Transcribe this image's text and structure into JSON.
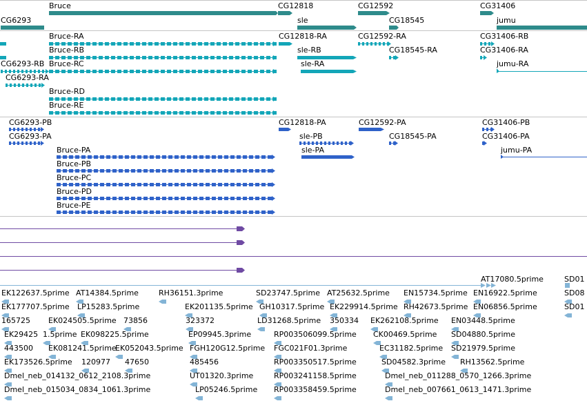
{
  "colors": {
    "gene": "#2e8b8b",
    "rna": "#13a6b8",
    "protein": "#2f62c9",
    "pseudo": "#6f4aa3",
    "est": "#83b4d6",
    "divider": "#c4c4c4"
  },
  "gene_track": {
    "labels": [
      "Bruce",
      "CG12818",
      "CG12592",
      "CG31406",
      "CG6293",
      "sle",
      "CG18545",
      "jumu"
    ]
  },
  "rna_track": {
    "labels": [
      "Bruce-RA",
      "CG12818-RA",
      "CG12592-RA",
      "CG31406-RB",
      "Bruce-RB",
      "sle-RB",
      "CG18545-RA",
      "CG31406-RA",
      "CG6293-RB",
      "Bruce-RC",
      "sle-RA",
      "jumu-RA",
      "CG6293-RA",
      "Bruce-RD",
      "Bruce-RE"
    ]
  },
  "protein_track": {
    "labels": [
      "CG6293-PB",
      "CG12818-PA",
      "CG12592-PA",
      "CG31406-PB",
      "CG6293-PA",
      "sle-PB",
      "CG18545-PA",
      "CG31406-PA",
      "Bruce-PA",
      "sle-PA",
      "jumu-PA",
      "Bruce-PB",
      "Bruce-PC",
      "Bruce-PD",
      "Bruce-PE"
    ]
  },
  "est_track": {
    "labels": [
      "AT17080.5prime",
      "SD01",
      "EK122637.5prime",
      "AT14384.5prime",
      "RH36151.3prime",
      "SD23747.5prime",
      "AT25632.5prime",
      "EN15734.5prime",
      "EN16922.5prime",
      "SD08",
      "EK177707.5prime",
      "LP15283.5prime",
      "EK201135.5prime",
      "GH10317.5prime",
      "EK229914.5prime",
      "RH42673.5prime",
      "EN06856.5prime",
      "SD01",
      "165725",
      "EK024505.5prime",
      "73856",
      "323372",
      "LD31268.5prime",
      "350334",
      "EK262108.5prime",
      "EN03448.5prime",
      "EK29425",
      "1.5prime",
      "EK098225.5prime",
      "EP09945.3prime",
      "RP003506099.5prime",
      "CK00469.5prime",
      "SD04880.5prime",
      "443500",
      "EK081241.5prime",
      "EK052043.5prime",
      "FGH120G12.5prime",
      "FGC021F01.3prime",
      "EC31182.5prime",
      "SD21979.5prime",
      "EK173526.5prime",
      "120977",
      "47650",
      "485456",
      "RP003350517.5prime",
      "SD04582.3prime",
      "RH13562.5prime",
      "Dmel_neb_014132_0612_2108.3prime",
      "UT01320.3prime",
      "RP003241158.5prime",
      "Dmel_neb_011288_0570_1266.3prime",
      "Dmel_neb_015034_0834_1061.3prime",
      "LP05246.5prime",
      "RP003358459.5prime",
      "Dmel_neb_007661_0613_1471.3prime"
    ]
  }
}
